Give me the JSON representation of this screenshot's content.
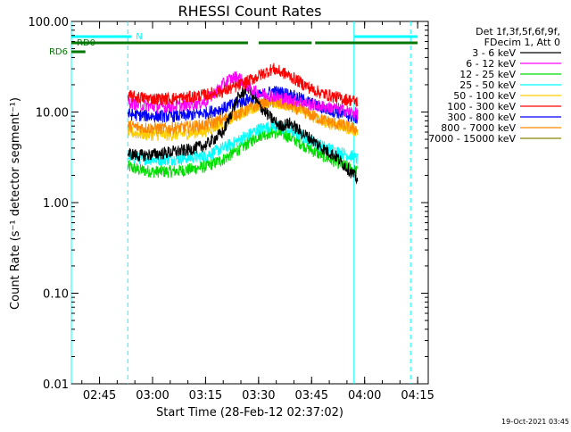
{
  "chart_data": {
    "type": "line",
    "title": "RHESSI Count Rates",
    "xlabel": "Start Time (28-Feb-12 02:37:02)",
    "ylabel": "Count Rate (s⁻¹ detector segment⁻¹)",
    "y_scale": "log",
    "ylim": [
      0.01,
      100
    ],
    "xlim": [
      "02:37:02",
      "04:18:00"
    ],
    "x_ticks": [
      "02:45",
      "03:00",
      "03:15",
      "03:30",
      "03:45",
      "04:00",
      "04:15"
    ],
    "y_ticks": [
      "0.01",
      "0.10",
      "1.00",
      "10.00",
      "100.00"
    ],
    "legend": {
      "position": "right",
      "header": [
        "Det 1f,3f,5f,6f,9f,",
        "FDecim 1, Att 0"
      ],
      "entries": [
        {
          "label": "3 - 6 keV",
          "color": "#000000"
        },
        {
          "label": "6 - 12 keV",
          "color": "#ff00ff"
        },
        {
          "label": "12 - 25 keV",
          "color": "#00dd00"
        },
        {
          "label": "25 - 50 keV",
          "color": "#00ffff"
        },
        {
          "label": "50 - 100 keV",
          "color": "#ffcc00"
        },
        {
          "label": "100 - 300 keV",
          "color": "#ff0000"
        },
        {
          "label": "300 - 800 keV",
          "color": "#0000ff"
        },
        {
          "label": "800 - 7000 keV",
          "color": "#ff8800"
        },
        {
          "label": "7000 - 15000 keV",
          "color": "#888800"
        }
      ]
    },
    "series": [
      {
        "name": "3 - 6 keV",
        "color": "#000000",
        "x": [
          "02:53",
          "02:56",
          "03:00",
          "03:05",
          "03:10",
          "03:15",
          "03:20",
          "03:24",
          "03:27",
          "03:30",
          "03:33",
          "03:36",
          "03:39",
          "03:42",
          "03:45",
          "03:48",
          "03:52",
          "03:56",
          "03:58"
        ],
        "values": [
          3.5,
          3.3,
          3.4,
          3.6,
          3.8,
          4.3,
          6.0,
          14.0,
          19.0,
          12.0,
          9.0,
          7.0,
          7.5,
          6.0,
          5.0,
          4.0,
          3.2,
          2.2,
          1.8
        ]
      },
      {
        "name": "6 - 12 keV",
        "color": "#ff00ff",
        "x": [
          "02:53",
          "02:56",
          "03:00",
          "03:05",
          "03:10",
          "03:15",
          "03:18",
          "03:21",
          "03:24",
          "03:27",
          "03:30",
          "03:34",
          "03:38",
          "03:42",
          "03:45",
          "03:48",
          "03:52",
          "03:56",
          "03:58"
        ],
        "values": [
          13,
          12,
          11.5,
          11.5,
          12,
          13,
          17,
          22,
          25,
          19,
          16,
          15,
          14,
          13,
          12,
          11.5,
          11,
          10,
          9.5
        ]
      },
      {
        "name": "12 - 25 keV",
        "color": "#00dd00",
        "x": [
          "02:53",
          "02:56",
          "03:00",
          "03:05",
          "03:10",
          "03:15",
          "03:20",
          "03:25",
          "03:30",
          "03:34",
          "03:38",
          "03:42",
          "03:45",
          "03:48",
          "03:52",
          "03:56",
          "03:58"
        ],
        "values": [
          2.5,
          2.3,
          2.2,
          2.2,
          2.3,
          2.5,
          3.0,
          4.0,
          5.5,
          6.0,
          5.5,
          4.5,
          3.8,
          3.3,
          2.8,
          2.4,
          2.2
        ]
      },
      {
        "name": "25 - 50 keV",
        "color": "#00ffff",
        "x": [
          "02:53",
          "02:56",
          "03:00",
          "03:05",
          "03:10",
          "03:15",
          "03:20",
          "03:25",
          "03:30",
          "03:34",
          "03:38",
          "03:42",
          "03:45",
          "03:48",
          "03:52",
          "03:56",
          "03:58"
        ],
        "values": [
          3.2,
          3.1,
          3.0,
          3.0,
          3.1,
          3.3,
          4.0,
          5.0,
          6.5,
          7.0,
          6.5,
          5.5,
          4.8,
          4.2,
          3.7,
          3.3,
          3.0
        ]
      },
      {
        "name": "50 - 100 keV",
        "color": "#ffcc00",
        "x": [
          "02:53",
          "02:56",
          "03:00",
          "03:05",
          "03:10",
          "03:15",
          "03:20",
          "03:25",
          "03:30",
          "03:34",
          "03:38",
          "03:42",
          "03:45",
          "03:48",
          "03:52",
          "03:56",
          "03:58"
        ],
        "values": [
          6.0,
          5.8,
          5.6,
          5.6,
          5.8,
          6.2,
          7.5,
          9.5,
          12,
          13,
          12,
          10.5,
          9,
          8,
          7.2,
          6.5,
          6.2
        ]
      },
      {
        "name": "100 - 300 keV",
        "color": "#ff0000",
        "x": [
          "02:53",
          "02:56",
          "03:00",
          "03:05",
          "03:10",
          "03:15",
          "03:20",
          "03:25",
          "03:30",
          "03:34",
          "03:38",
          "03:42",
          "03:45",
          "03:48",
          "03:52",
          "03:56",
          "03:58"
        ],
        "values": [
          15,
          14.5,
          14,
          14,
          14.5,
          15.5,
          17,
          20,
          25,
          30,
          26,
          21,
          18,
          16,
          14.5,
          13.5,
          13
        ]
      },
      {
        "name": "300 - 800 keV",
        "color": "#0000ff",
        "x": [
          "02:53",
          "02:56",
          "03:00",
          "03:05",
          "03:10",
          "03:15",
          "03:20",
          "03:25",
          "03:30",
          "03:34",
          "03:38",
          "03:42",
          "03:45",
          "03:48",
          "03:52",
          "03:56",
          "03:58"
        ],
        "values": [
          9.5,
          9.2,
          9.0,
          9.0,
          9.2,
          9.8,
          11,
          13,
          15,
          17,
          16,
          14,
          12.5,
          11,
          10,
          9,
          8.5
        ]
      },
      {
        "name": "800 - 7000 keV",
        "color": "#ff8800",
        "x": [
          "02:53",
          "02:56",
          "03:00",
          "03:05",
          "03:10",
          "03:15",
          "03:20",
          "03:25",
          "03:30",
          "03:34",
          "03:38",
          "03:42",
          "03:45",
          "03:48",
          "03:52",
          "03:56",
          "03:58"
        ],
        "values": [
          7.0,
          6.8,
          6.6,
          6.6,
          6.8,
          7.2,
          8.3,
          10,
          12,
          13,
          12,
          10.5,
          9.2,
          8.2,
          7.4,
          6.8,
          6.4
        ]
      }
    ],
    "flag_bars": [
      {
        "label": "N",
        "color": "#00ffff",
        "level": 1,
        "segments": [
          [
            "02:37:02",
            "02:54:00"
          ],
          [
            "03:57:00",
            "04:15:00"
          ]
        ]
      },
      {
        "label": "RD0",
        "color": "#007700",
        "level": 2,
        "segments": [
          [
            "02:37:02",
            "03:27:00"
          ],
          [
            "03:30:00",
            "03:45:00"
          ],
          [
            "03:46:00",
            "04:15:00"
          ]
        ]
      },
      {
        "label": "RD6",
        "color": "#007700",
        "level": 3,
        "segments": [
          [
            "02:37:02",
            "02:41:00"
          ]
        ]
      }
    ],
    "markers": {
      "solid": {
        "color": "#00ffff",
        "x": [
          "02:37:02",
          "03:57:00"
        ]
      },
      "dashed": {
        "color": "#00ffff",
        "x": [
          "02:53:00",
          "04:13:00"
        ]
      }
    },
    "footer_timestamp": "19-Oct-2021 03:45",
    "colors": {
      "background": "#ffffff",
      "axes": "#000000"
    }
  }
}
